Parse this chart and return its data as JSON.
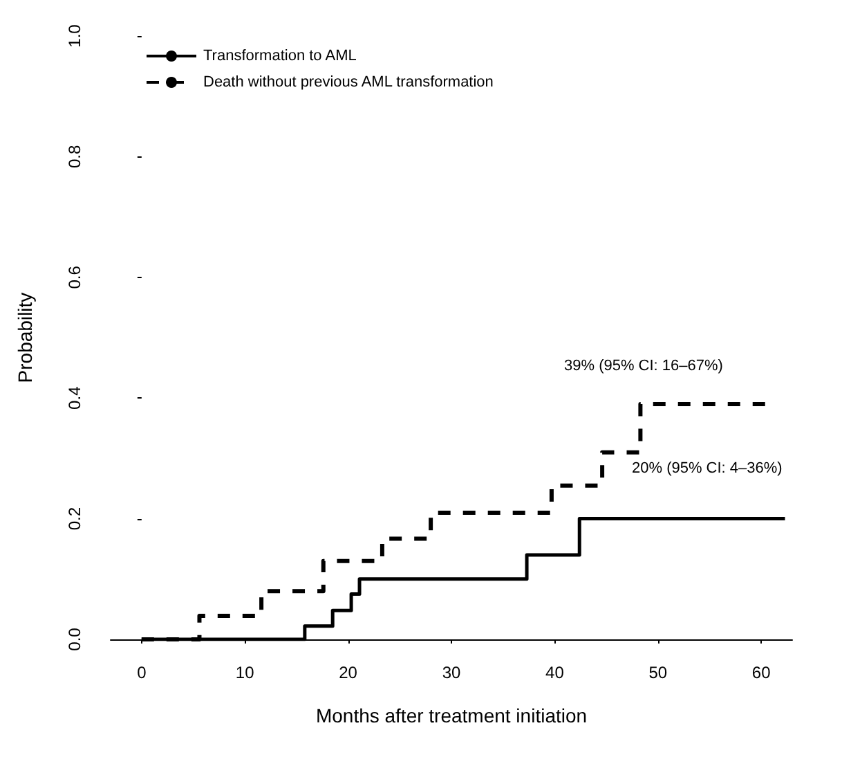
{
  "chart_data": {
    "type": "step",
    "xlabel": "Months after treatment initiation",
    "ylabel": "Probability",
    "xlim": [
      -3,
      63
    ],
    "xticks": [
      0,
      10,
      20,
      30,
      40,
      50,
      60
    ],
    "ylim": [
      0,
      1
    ],
    "yticks": [
      {
        "value": 0,
        "label": "0.0"
      },
      {
        "value": 0.2,
        "label": "0.2"
      },
      {
        "value": 0.4,
        "label": "0.4"
      },
      {
        "value": 0.6,
        "label": "0.6"
      },
      {
        "value": 0.8,
        "label": "0.8"
      },
      {
        "value": 1,
        "label": "1.0"
      }
    ],
    "grid": false,
    "legend": "top left",
    "marker": "none",
    "series": [
      {
        "name": "Transformation to AML",
        "color": "#000000",
        "line_style": "solid",
        "x": [
          0,
          15.8,
          18.5,
          20.3,
          21.1,
          37.3,
          42.4,
          62.3
        ],
        "values": [
          0,
          0.022,
          0.048,
          0.075,
          0.1,
          0.14,
          0.2,
          0.2
        ]
      },
      {
        "name": "Death without previous AML transformation",
        "color": "#000000",
        "line_style": "dashed",
        "x": [
          0,
          5.6,
          11.6,
          17.6,
          23.3,
          28,
          39.7,
          44.6,
          48.3,
          60.7
        ],
        "values": [
          0,
          0.039,
          0.08,
          0.13,
          0.167,
          0.21,
          0.255,
          0.31,
          0.39,
          0.39
        ]
      }
    ],
    "annotations": [
      "39% (95% CI: 16–67%)",
      "20% (95% CI: 4–36%)"
    ]
  }
}
